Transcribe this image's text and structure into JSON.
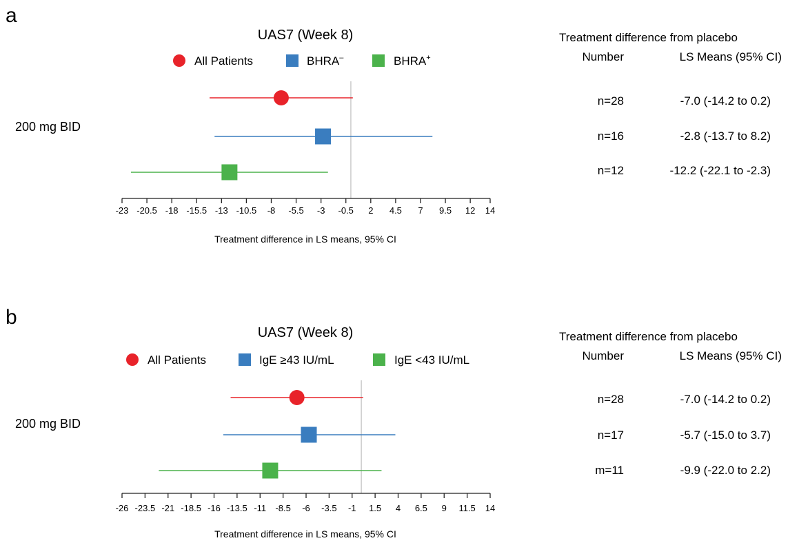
{
  "chart_data": [
    {
      "type": "forest",
      "panel_label": "a",
      "title": "UAS7 (Week 8)",
      "dose_label": "200 mg BID",
      "xlabel": "Treatment difference in LS means, 95% CI",
      "xlim": [
        -23,
        14
      ],
      "ticks": [
        "-23",
        "-20.5",
        "-18",
        "-15.5",
        "-13",
        "-10.5",
        "-8",
        "-5.5",
        "-3",
        "-0.5",
        "2",
        "4.5",
        "7",
        "9.5",
        "12",
        "14"
      ],
      "tick_values": [
        -23,
        -20.5,
        -18,
        -15.5,
        -13,
        -10.5,
        -8,
        -5.5,
        -3,
        -0.5,
        2,
        4.5,
        7,
        9.5,
        12,
        14
      ],
      "reference_line": 0,
      "legend": [
        {
          "label": "All Patients",
          "sup": "",
          "marker": "circle",
          "color": "#e8232a"
        },
        {
          "label": "BHRA",
          "sup": "–",
          "marker": "square",
          "color": "#3a7dbf"
        },
        {
          "label": "BHRA",
          "sup": "+",
          "marker": "square",
          "color": "#4bb24b"
        }
      ],
      "series": [
        {
          "name": "All Patients",
          "estimate": -7.0,
          "lower": -14.2,
          "upper": 0.2,
          "color": "#e8232a",
          "marker": "circle"
        },
        {
          "name": "BHRA–",
          "estimate": -2.8,
          "lower": -13.7,
          "upper": 8.2,
          "color": "#3a7dbf",
          "marker": "square"
        },
        {
          "name": "BHRA+",
          "estimate": -12.2,
          "lower": -22.1,
          "upper": -2.3,
          "color": "#4bb24b",
          "marker": "square"
        }
      ],
      "table": {
        "header1": "Treatment difference from placebo",
        "col_number": "Number",
        "col_ls": "LS Means (95% CI)",
        "rows": [
          {
            "n": "n=28",
            "ls": "-7.0 (-14.2 to 0.2)"
          },
          {
            "n": "n=16",
            "ls": "-2.8 (-13.7 to 8.2)"
          },
          {
            "n": "n=12",
            "ls": "-12.2 (-22.1 to -2.3)"
          }
        ]
      }
    },
    {
      "type": "forest",
      "panel_label": "b",
      "title": "UAS7 (Week 8)",
      "dose_label": "200 mg BID",
      "xlabel": "Treatment difference in LS means, 95% CI",
      "xlim": [
        -26,
        14
      ],
      "ticks": [
        "-26",
        "-23.5",
        "-21",
        "-18.5",
        "-16",
        "-13.5",
        "-11",
        "-8.5",
        "-6",
        "-3.5",
        "-1",
        "1.5",
        "4",
        "6.5",
        "9",
        "11.5",
        "14"
      ],
      "tick_values": [
        -26,
        -23.5,
        -21,
        -18.5,
        -16,
        -13.5,
        -11,
        -8.5,
        -6,
        -3.5,
        -1,
        1.5,
        4,
        6.5,
        9,
        11.5,
        14
      ],
      "reference_line": 0,
      "legend": [
        {
          "label": "All Patients",
          "sup": "",
          "marker": "circle",
          "color": "#e8232a"
        },
        {
          "label": "IgE ≥43 IU/mL",
          "sup": "",
          "marker": "square",
          "color": "#3a7dbf"
        },
        {
          "label": "IgE <43 IU/mL",
          "sup": "",
          "marker": "square",
          "color": "#4bb24b"
        }
      ],
      "series": [
        {
          "name": "All Patients",
          "estimate": -7.0,
          "lower": -14.2,
          "upper": 0.2,
          "color": "#e8232a",
          "marker": "circle"
        },
        {
          "name": "IgE ≥43 IU/mL",
          "estimate": -5.7,
          "lower": -15.0,
          "upper": 3.7,
          "color": "#3a7dbf",
          "marker": "square"
        },
        {
          "name": "IgE <43 IU/mL",
          "estimate": -9.9,
          "lower": -22.0,
          "upper": 2.2,
          "color": "#4bb24b",
          "marker": "square"
        }
      ],
      "table": {
        "header1": "Treatment difference from placebo",
        "col_number": "Number",
        "col_ls": "LS Means (95% CI)",
        "rows": [
          {
            "n": "n=28",
            "ls": "-7.0 (-14.2 to 0.2)"
          },
          {
            "n": "n=17",
            "ls": "-5.7 (-15.0 to 3.7)"
          },
          {
            "n": "m=11",
            "ls": "-9.9 (-22.0 to 2.2)"
          }
        ]
      }
    }
  ]
}
